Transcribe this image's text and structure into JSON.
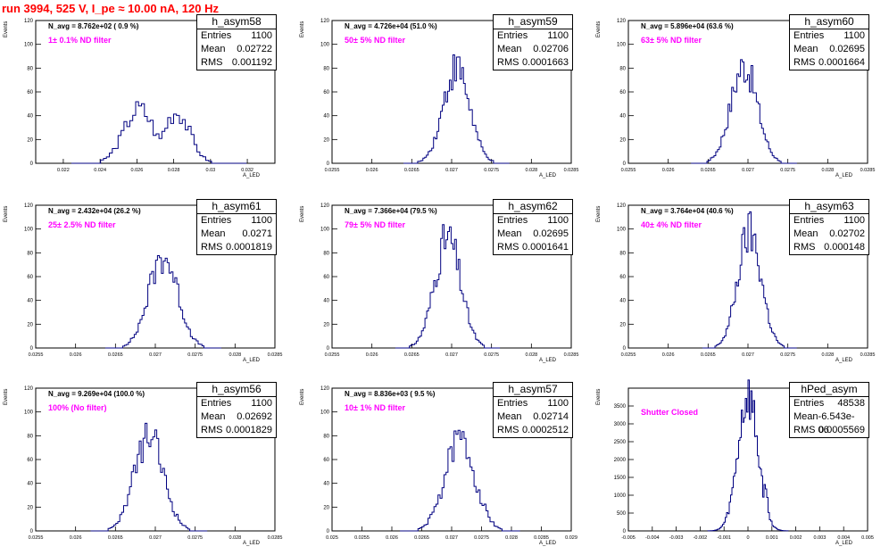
{
  "header": {
    "title": "run 3994,   525 V, I_pe ≈ 10.00 nA, 120 Hz"
  },
  "chart_data": [
    {
      "type": "bar",
      "hist_name": "h_asym58",
      "n_avg": "N_avg = 8.762e+02 ( 0.9 %)",
      "filter": "1± 0.1% ND filter",
      "entries": "1100",
      "mean": "0.02722",
      "rms": "0.001192",
      "xlabel": "A_LED",
      "ylabel": "Events",
      "xlim": [
        0.0205,
        0.0335
      ],
      "ylim": [
        0,
        120
      ],
      "xticks": [
        "0.022",
        "0.024",
        "0.026",
        "0.028",
        "0.03",
        "0.032"
      ],
      "yticks": [
        "0",
        "20",
        "40",
        "60",
        "80",
        "100",
        "120"
      ],
      "peak": 0.0272,
      "sigma": 0.00119,
      "peak_value": 46,
      "bimodal": true
    },
    {
      "type": "bar",
      "hist_name": "h_asym59",
      "n_avg": "N_avg = 4.726e+04 (51.0 %)",
      "filter": "50± 5% ND filter",
      "entries": "1100",
      "mean": "0.02706",
      "rms": "0.0001663",
      "xlabel": "A_LED",
      "ylabel": "Events",
      "xlim": [
        0.0255,
        0.0285
      ],
      "ylim": [
        0,
        120
      ],
      "xticks": [
        "0.0255",
        "0.026",
        "0.0265",
        "0.027",
        "0.0275",
        "0.028",
        "0.0285"
      ],
      "yticks": [
        "0",
        "20",
        "40",
        "60",
        "80",
        "100",
        "120"
      ],
      "peak": 0.02706,
      "sigma": 0.000166,
      "peak_value": 80
    },
    {
      "type": "bar",
      "hist_name": "h_asym60",
      "n_avg": "N_avg = 5.896e+04 (63.6 %)",
      "filter": "63± 5% ND filter",
      "entries": "1100",
      "mean": "0.02695",
      "rms": "0.0001664",
      "xlabel": "A_LED",
      "ylabel": "Events",
      "xlim": [
        0.0255,
        0.0285
      ],
      "ylim": [
        0,
        120
      ],
      "xticks": [
        "0.0255",
        "0.026",
        "0.0265",
        "0.027",
        "0.0275",
        "0.028",
        "0.0285"
      ],
      "yticks": [
        "0",
        "20",
        "40",
        "60",
        "80",
        "100",
        "120"
      ],
      "peak": 0.02695,
      "sigma": 0.000166,
      "peak_value": 82
    },
    {
      "type": "bar",
      "hist_name": "h_asym61",
      "n_avg": "N_avg = 2.432e+04 (26.2 %)",
      "filter": "25± 2.5% ND filter",
      "entries": "1100",
      "mean": "0.0271",
      "rms": "0.0001819",
      "xlabel": "A_LED",
      "ylabel": "Events",
      "xlim": [
        0.0255,
        0.0285
      ],
      "ylim": [
        0,
        120
      ],
      "xticks": [
        "0.0255",
        "0.026",
        "0.0265",
        "0.027",
        "0.0275",
        "0.028",
        "0.0285"
      ],
      "yticks": [
        "0",
        "20",
        "40",
        "60",
        "80",
        "100",
        "120"
      ],
      "peak": 0.0271,
      "sigma": 0.000182,
      "peak_value": 77
    },
    {
      "type": "bar",
      "hist_name": "h_asym62",
      "n_avg": "N_avg = 7.366e+04 (79.5 %)",
      "filter": "79± 5% ND filter",
      "entries": "1100",
      "mean": "0.02695",
      "rms": "0.0001641",
      "xlabel": "A_LED",
      "ylabel": "Events",
      "xlim": [
        0.0255,
        0.0285
      ],
      "ylim": [
        0,
        120
      ],
      "xticks": [
        "0.0255",
        "0.026",
        "0.0265",
        "0.027",
        "0.0275",
        "0.028",
        "0.0285"
      ],
      "yticks": [
        "0",
        "20",
        "40",
        "60",
        "80",
        "100",
        "120"
      ],
      "peak": 0.02695,
      "sigma": 0.000164,
      "peak_value": 92
    },
    {
      "type": "bar",
      "hist_name": "h_asym63",
      "n_avg": "N_avg = 3.764e+04 (40.6 %)",
      "filter": "40± 4% ND filter",
      "entries": "1100",
      "mean": "0.02702",
      "rms": "0.000148",
      "xlabel": "A_LED",
      "ylabel": "Events",
      "xlim": [
        0.0255,
        0.0285
      ],
      "ylim": [
        0,
        120
      ],
      "xticks": [
        "0.0255",
        "0.026",
        "0.0265",
        "0.027",
        "0.0275",
        "0.028",
        "0.0285"
      ],
      "yticks": [
        "0",
        "20",
        "40",
        "60",
        "80",
        "100",
        "120"
      ],
      "peak": 0.02702,
      "sigma": 0.000148,
      "peak_value": 97
    },
    {
      "type": "bar",
      "hist_name": "h_asym56",
      "n_avg": "N_avg = 9.269e+04 (100.0 %)",
      "filter": "100% (No filter)",
      "entries": "1100",
      "mean": "0.02692",
      "rms": "0.0001829",
      "xlabel": "A_LED",
      "ylabel": "Events",
      "xlim": [
        0.0255,
        0.0285
      ],
      "ylim": [
        0,
        120
      ],
      "xticks": [
        "0.0255",
        "0.026",
        "0.0265",
        "0.027",
        "0.0275",
        "0.028",
        "0.0285"
      ],
      "yticks": [
        "0",
        "20",
        "40",
        "60",
        "80",
        "100",
        "120"
      ],
      "peak": 0.02692,
      "sigma": 0.000183,
      "peak_value": 79
    },
    {
      "type": "bar",
      "hist_name": "h_asym57",
      "n_avg": "N_avg = 8.836e+03 ( 9.5 %)",
      "filter": "10± 1% ND filter",
      "entries": "1100",
      "mean": "0.02714",
      "rms": "0.0002512",
      "xlabel": "A_LED",
      "ylabel": "Events",
      "xlim": [
        0.025,
        0.029
      ],
      "ylim": [
        0,
        120
      ],
      "xticks": [
        "0.025",
        "0.0255",
        "0.026",
        "0.0265",
        "0.027",
        "0.0275",
        "0.028",
        "0.0285",
        "0.029"
      ],
      "yticks": [
        "0",
        "20",
        "40",
        "60",
        "80",
        "100",
        "120"
      ],
      "peak": 0.02714,
      "sigma": 0.000251,
      "peak_value": 76
    },
    {
      "type": "bar",
      "hist_name": "hPed_asym",
      "n_avg": "",
      "filter": "Shutter Closed",
      "entries": "48538",
      "mean": "-6.543e-06",
      "rms": "0.0005569",
      "xlabel": "A_LED",
      "ylabel": "Events",
      "xlim": [
        -0.005,
        0.005
      ],
      "ylim": [
        0,
        4000
      ],
      "xticks": [
        "-0.005",
        "-0.004",
        "-0.003",
        "-0.002",
        "-0.001",
        "0",
        "0.001",
        "0.002",
        "0.003",
        "0.004",
        "0.005"
      ],
      "yticks": [
        "0",
        "500",
        "1000",
        "1500",
        "2000",
        "2500",
        "3000",
        "3500"
      ],
      "peak": 0.0,
      "sigma": 0.00042,
      "peak_value": 3750,
      "shoulder": true
    }
  ]
}
